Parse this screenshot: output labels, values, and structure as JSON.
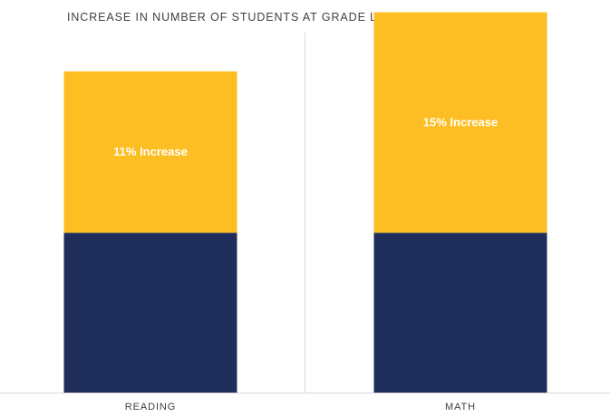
{
  "chart_data": {
    "type": "bar",
    "stacked": true,
    "title": "INCREASE IN NUMBER OF STUDENTS AT GRADE LEVEL READING & MATH",
    "xlabel": "",
    "ylabel": "",
    "grid": false,
    "categories": [
      "READING",
      "MATH"
    ],
    "series": [
      {
        "values": [
          100,
          100
        ],
        "color": "#1f2d5a"
      },
      {
        "values": [
          101,
          138
        ],
        "color": "#fcbe22",
        "labels": [
          "11% Increase",
          "15% Increase"
        ]
      }
    ],
    "ylim": [
      0,
      240
    ]
  }
}
